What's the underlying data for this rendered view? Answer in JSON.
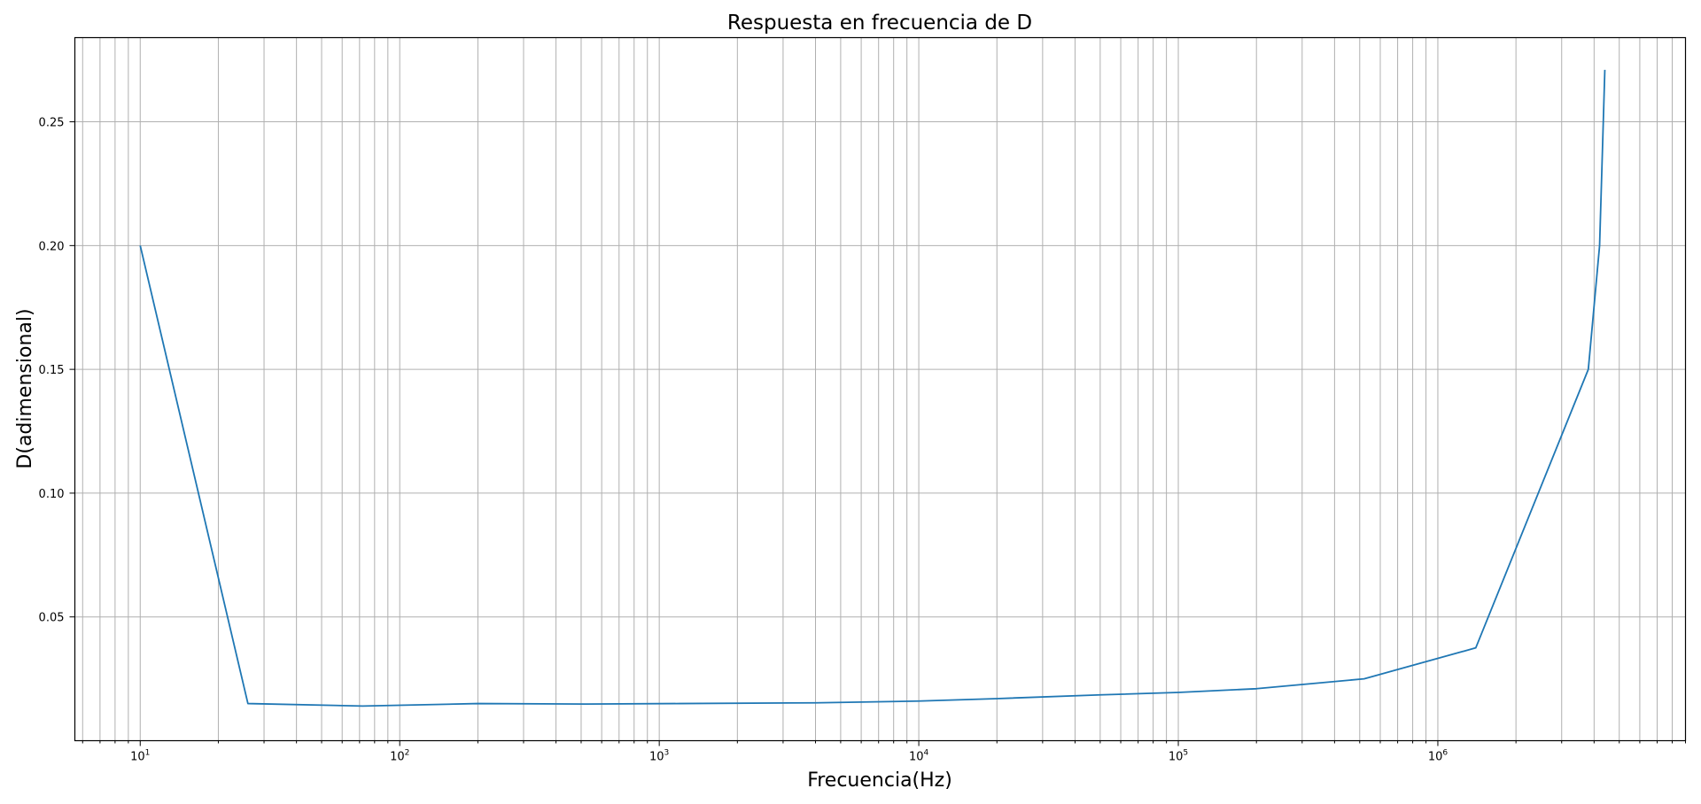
{
  "chart_data": {
    "type": "line",
    "title": "Respuesta en frecuencia de D",
    "xlabel": "Frecuencia(Hz)",
    "ylabel": "D(adimensional)",
    "xscale": "log",
    "xlim": [
      5.6,
      9000000
    ],
    "ylim": [
      0.0,
      0.284
    ],
    "grid": true,
    "grid_minor_x": true,
    "line_color": "#1f77b4",
    "x_ticks": [
      {
        "value": 10,
        "base": "10",
        "exp": "1"
      },
      {
        "value": 100,
        "base": "10",
        "exp": "2"
      },
      {
        "value": 1000,
        "base": "10",
        "exp": "3"
      },
      {
        "value": 10000,
        "base": "10",
        "exp": "4"
      },
      {
        "value": 100000,
        "base": "10",
        "exp": "5"
      },
      {
        "value": 1000000,
        "base": "10",
        "exp": "6"
      }
    ],
    "y_ticks": [
      "0.05",
      "0.10",
      "0.15",
      "0.20",
      "0.25"
    ],
    "series": [
      {
        "x": [
          10,
          26,
          72,
          200,
          520,
          1200,
          4000,
          10000,
          20000,
          50000,
          100000,
          200000,
          520000,
          1400000,
          3800000,
          4200000,
          4400000
        ],
        "y": [
          0.2,
          0.015,
          0.014,
          0.015,
          0.0148,
          0.015,
          0.0153,
          0.016,
          0.017,
          0.0185,
          0.0195,
          0.021,
          0.025,
          0.0375,
          0.15,
          0.2,
          0.271
        ]
      }
    ]
  }
}
